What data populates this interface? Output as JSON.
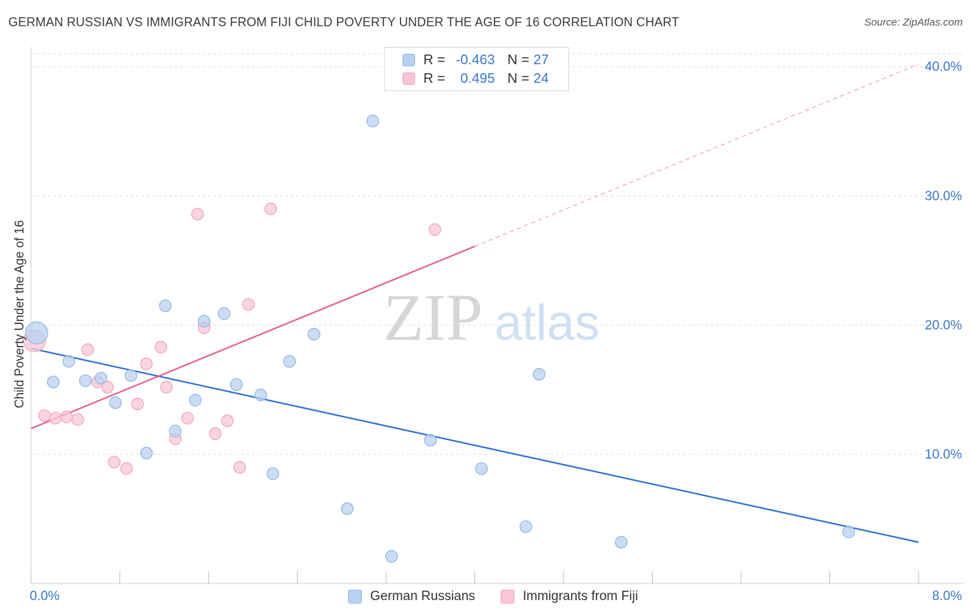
{
  "header": {
    "title": "GERMAN RUSSIAN VS IMMIGRANTS FROM FIJI CHILD POVERTY UNDER THE AGE OF 16 CORRELATION CHART",
    "source": "Source: ZipAtlas.com"
  },
  "watermark": {
    "zip": "ZIP",
    "atlas": "atlas"
  },
  "stats_legend": {
    "rows": [
      {
        "r_label": "R =",
        "r_value": "-0.463",
        "n_label": "N =",
        "n_value": "27"
      },
      {
        "r_label": "R =",
        "r_value": "0.495",
        "n_label": "N =",
        "n_value": "24"
      }
    ]
  },
  "bottom_legend": {
    "series1": "German Russians",
    "series2": "Immigrants from Fiji"
  },
  "colors": {
    "series1_fill": "#b8d1f0",
    "series1_stroke": "#8fb4e3",
    "series1_line": "#2f6fd0",
    "series2_fill": "#f8c6d4",
    "series2_stroke": "#f0a3b9",
    "series2_line": "#e0608a",
    "axis_text": "#3a76c9",
    "grid": "#dedede"
  },
  "chart_data": {
    "type": "scatter",
    "title": "GERMAN RUSSIAN VS IMMIGRANTS FROM FIJI CHILD POVERTY UNDER THE AGE OF 16 CORRELATION CHART",
    "xlabel": "",
    "ylabel": "Child Poverty Under the Age of 16",
    "xlim": [
      0,
      8
    ],
    "ylim": [
      0,
      41
    ],
    "x_ticks": [
      "0.0%",
      "8.0%"
    ],
    "y_ticks": [
      {
        "value": 10,
        "label": "10.0%"
      },
      {
        "value": 20,
        "label": "20.0%"
      },
      {
        "value": 30,
        "label": "30.0%"
      },
      {
        "value": 40,
        "label": "40.0%"
      }
    ],
    "grid": true,
    "legend_position": "top-center",
    "series": [
      {
        "name": "German Russians",
        "r": -0.463,
        "n": 27,
        "trend": {
          "x": [
            0,
            8
          ],
          "y": [
            18.2,
            3.2
          ]
        },
        "points": [
          {
            "x": 0.05,
            "y": 19.4,
            "big": true
          },
          {
            "x": 0.2,
            "y": 15.6
          },
          {
            "x": 0.34,
            "y": 17.2
          },
          {
            "x": 0.49,
            "y": 15.7
          },
          {
            "x": 0.63,
            "y": 15.9
          },
          {
            "x": 0.76,
            "y": 14.0
          },
          {
            "x": 0.9,
            "y": 16.1
          },
          {
            "x": 1.04,
            "y": 10.1
          },
          {
            "x": 1.21,
            "y": 21.5
          },
          {
            "x": 1.3,
            "y": 11.8
          },
          {
            "x": 1.48,
            "y": 14.2
          },
          {
            "x": 1.56,
            "y": 20.3
          },
          {
            "x": 1.74,
            "y": 20.9
          },
          {
            "x": 1.85,
            "y": 15.4
          },
          {
            "x": 2.07,
            "y": 14.6
          },
          {
            "x": 2.18,
            "y": 8.5
          },
          {
            "x": 2.33,
            "y": 17.2
          },
          {
            "x": 2.55,
            "y": 19.3
          },
          {
            "x": 2.85,
            "y": 5.8
          },
          {
            "x": 3.08,
            "y": 35.8
          },
          {
            "x": 3.25,
            "y": 2.1
          },
          {
            "x": 3.6,
            "y": 11.1
          },
          {
            "x": 4.06,
            "y": 8.9
          },
          {
            "x": 4.46,
            "y": 4.4
          },
          {
            "x": 4.58,
            "y": 16.2
          },
          {
            "x": 5.32,
            "y": 3.2
          },
          {
            "x": 7.37,
            "y": 4.0
          }
        ]
      },
      {
        "name": "Immigrants from Fiji",
        "r": 0.495,
        "n": 24,
        "trend": {
          "x": [
            0,
            4.0
          ],
          "y": [
            12.0,
            26.1
          ]
        },
        "trend_dashed": {
          "x": [
            4.0,
            8.0
          ],
          "y": [
            26.1,
            40.2
          ]
        },
        "points": [
          {
            "x": 0.03,
            "y": 18.8,
            "big": true
          },
          {
            "x": 0.12,
            "y": 13.0
          },
          {
            "x": 0.22,
            "y": 12.8
          },
          {
            "x": 0.32,
            "y": 12.9
          },
          {
            "x": 0.42,
            "y": 12.7
          },
          {
            "x": 0.51,
            "y": 18.1
          },
          {
            "x": 0.6,
            "y": 15.6
          },
          {
            "x": 0.69,
            "y": 15.2
          },
          {
            "x": 0.75,
            "y": 9.4
          },
          {
            "x": 0.86,
            "y": 8.9
          },
          {
            "x": 0.96,
            "y": 13.9
          },
          {
            "x": 1.04,
            "y": 17.0
          },
          {
            "x": 1.17,
            "y": 18.3
          },
          {
            "x": 1.22,
            "y": 15.2
          },
          {
            "x": 1.3,
            "y": 11.2
          },
          {
            "x": 1.41,
            "y": 12.8
          },
          {
            "x": 1.5,
            "y": 28.6
          },
          {
            "x": 1.56,
            "y": 19.8
          },
          {
            "x": 1.66,
            "y": 11.6
          },
          {
            "x": 1.77,
            "y": 12.6
          },
          {
            "x": 1.88,
            "y": 9.0
          },
          {
            "x": 1.96,
            "y": 21.6
          },
          {
            "x": 2.16,
            "y": 29.0
          },
          {
            "x": 3.64,
            "y": 27.4
          }
        ]
      }
    ]
  }
}
